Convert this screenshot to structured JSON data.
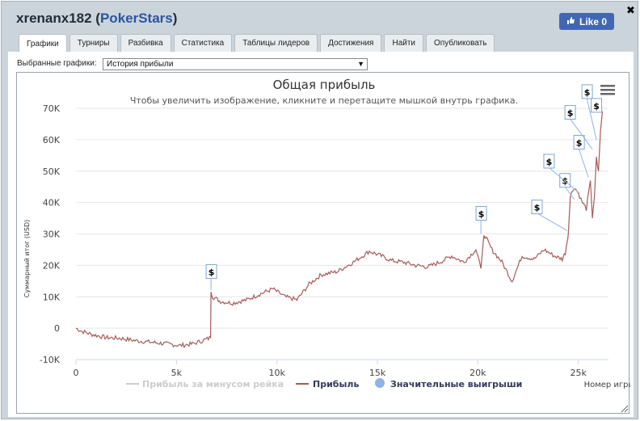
{
  "header": {
    "user": "xrenanx182",
    "site": "PokerStars",
    "like_label": "Like 0"
  },
  "tabs": [
    "Графики",
    "Турниры",
    "Разбивка",
    "Статистика",
    "Таблицы лидеров",
    "Достижения",
    "Найти",
    "Опубликовать"
  ],
  "selector": {
    "label": "Выбранные графики:",
    "value": "История прибыли"
  },
  "chart_data": {
    "type": "line",
    "title": "Общая прибыль",
    "subtitle": "Чтобы увеличить изображение, кликните и перетащите мышкой внутрь графика.",
    "xlabel": "Номер игры",
    "ylabel": "Суммарный итог (USD)",
    "xlim": [
      0,
      26500
    ],
    "ylim": [
      -10000,
      70000
    ],
    "x_ticks": [
      "0",
      "5k",
      "10k",
      "15k",
      "20k",
      "25k"
    ],
    "y_ticks": [
      "-10K",
      "0",
      "10K",
      "20K",
      "30K",
      "40K",
      "50K",
      "60K",
      "70K"
    ],
    "series": [
      {
        "name": "Прибыль за минусом рейка",
        "visible": false,
        "color": "#cccccc"
      },
      {
        "name": "Прибыль",
        "color": "#a85a5a",
        "x": [
          0,
          300,
          800,
          1500,
          2200,
          3000,
          3800,
          4500,
          5200,
          5800,
          6300,
          6700,
          6720,
          6800,
          7200,
          7800,
          8500,
          9200,
          9800,
          10400,
          11000,
          11600,
          12200,
          13000,
          13800,
          14600,
          15200,
          15700,
          16300,
          16900,
          17500,
          18100,
          18700,
          19300,
          19900,
          20150,
          20300,
          20700,
          21200,
          21700,
          22200,
          22800,
          23300,
          23800,
          24200,
          24350,
          24450,
          24500,
          24600,
          24800,
          25000,
          25200,
          25400,
          25600,
          25700,
          25800,
          25900,
          26000,
          26100,
          26200
        ],
        "y": [
          0,
          -1000,
          -2000,
          -3000,
          -3200,
          -4000,
          -4500,
          -5000,
          -5500,
          -5000,
          -4000,
          -3000,
          12000,
          10000,
          8500,
          8000,
          9000,
          11000,
          12500,
          10000,
          9000,
          14000,
          17000,
          18000,
          21000,
          24500,
          23000,
          21500,
          21000,
          20000,
          19500,
          21000,
          23000,
          21000,
          25000,
          19000,
          30000,
          25000,
          21000,
          15000,
          23000,
          22000,
          25000,
          23000,
          22000,
          24000,
          28000,
          30000,
          42000,
          45000,
          43000,
          40000,
          38000,
          47000,
          35000,
          42000,
          54000,
          50000,
          63000,
          69000
        ]
      },
      {
        "name": "Значительные выигрыши",
        "color": "#8fb3e3",
        "marker": "$",
        "points": [
          {
            "x": 6720,
            "y": 12000
          },
          {
            "x": 20150,
            "y": 30000
          },
          {
            "x": 24450,
            "y": 31000
          },
          {
            "x": 24800,
            "y": 41000
          },
          {
            "x": 25050,
            "y": 43000
          },
          {
            "x": 25500,
            "y": 48000
          },
          {
            "x": 25700,
            "y": 57000
          },
          {
            "x": 25900,
            "y": 60000
          },
          {
            "x": 26200,
            "y": 69000
          }
        ]
      }
    ],
    "legend_position": "bottom"
  }
}
